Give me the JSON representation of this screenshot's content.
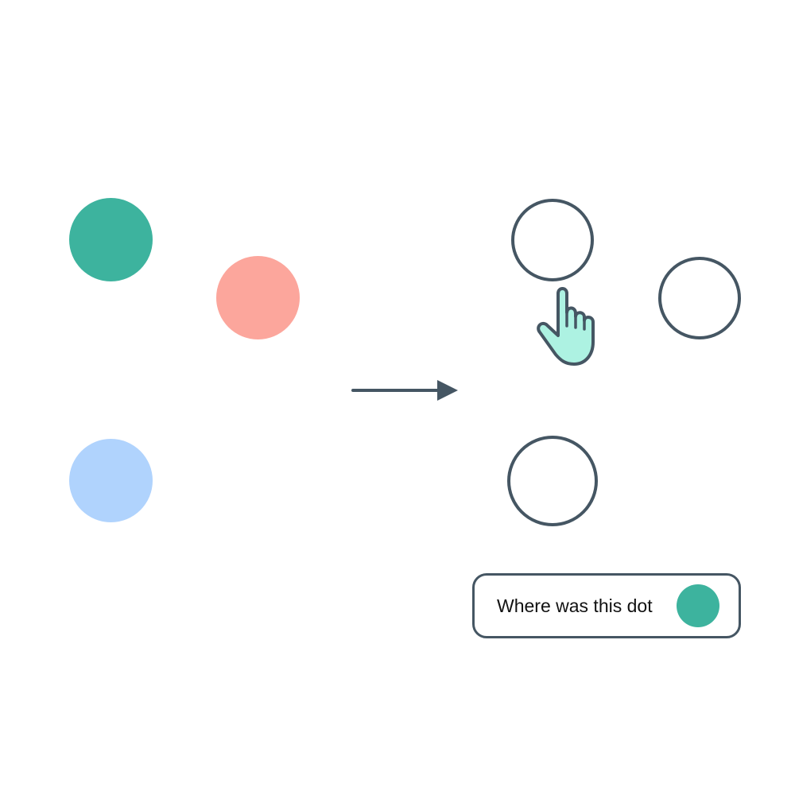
{
  "colors": {
    "teal": "#3db39e",
    "salmon": "#fca69c",
    "light_blue": "#b0d3fd",
    "outline": "#455663",
    "hand_fill": "#adf2e2"
  },
  "source_dots": [
    {
      "name": "teal-dot",
      "color": "#3db39e"
    },
    {
      "name": "salmon-dot",
      "color": "#fca69c"
    },
    {
      "name": "light-blue-dot",
      "color": "#b0d3fd"
    }
  ],
  "arrow_icon": "arrow-right-icon",
  "pointer_icon": "hand-pointer-icon",
  "prompt": {
    "text": "Where was this dot",
    "dot_color": "#3db39e"
  }
}
